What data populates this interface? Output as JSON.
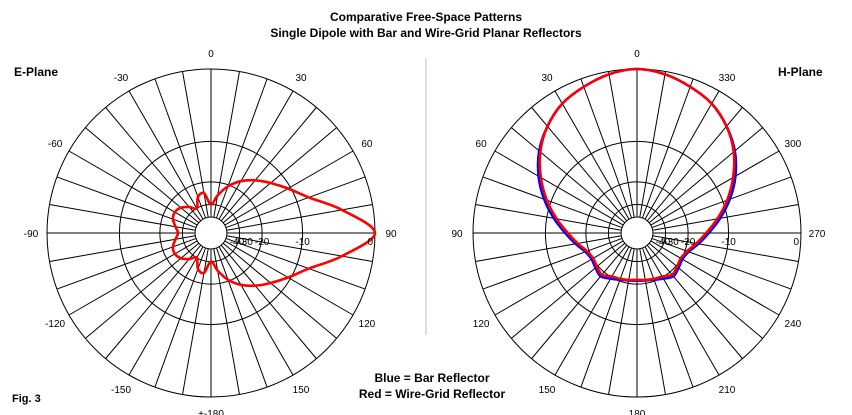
{
  "title_line1": "Comparative Free-Space Patterns",
  "title_line2": "Single Dipole with Bar and Wire-Grid Planar Reflectors",
  "fig_label": "Fig. 3",
  "legend_blue": "Blue = Bar Reflector",
  "legend_red": "Red = Wire-Grid Reflector",
  "colors": {
    "bar": "#0000ff",
    "wire_grid": "#ff0000",
    "grid": "#000000",
    "divider": "#c0c0c0"
  },
  "chart_data": [
    {
      "type": "polar",
      "plane_label": "E-Plane",
      "angle_labels": [
        {
          "angle": 0,
          "text": "0"
        },
        {
          "angle": 30,
          "text": "30"
        },
        {
          "angle": 60,
          "text": "60"
        },
        {
          "angle": 90,
          "text": "90"
        },
        {
          "angle": 120,
          "text": "120"
        },
        {
          "angle": 150,
          "text": "150"
        },
        {
          "angle": 180,
          "text": "+-180"
        },
        {
          "angle": -150,
          "text": "-150"
        },
        {
          "angle": -120,
          "text": "-120"
        },
        {
          "angle": -90,
          "text": "-90"
        },
        {
          "angle": -60,
          "text": "-60"
        },
        {
          "angle": -30,
          "text": "-30"
        }
      ],
      "db_labels": [
        "0",
        "-10",
        "-20",
        "-30",
        "-40"
      ],
      "r_labels_side": "right",
      "series": [
        {
          "color": "#ff0000",
          "angles": [
            0,
            10,
            20,
            30,
            40,
            50,
            60,
            70,
            80,
            90,
            100,
            110,
            120,
            130,
            140,
            150,
            160,
            170,
            180,
            190,
            200,
            210,
            220,
            230,
            240,
            250,
            260,
            270,
            280,
            290,
            300,
            310,
            320,
            330,
            340,
            350,
            360
          ],
          "gain_db": [
            -30,
            -25,
            -20.5,
            -17.3,
            -14.9,
            -12.8,
            -10.5,
            -7.8,
            -3.6,
            0,
            -3.6,
            -7.8,
            -10.5,
            -12.8,
            -14.9,
            -17.3,
            -20.5,
            -25,
            -30,
            -24,
            -25,
            -30,
            -27,
            -24.5,
            -23.5,
            -24,
            -26,
            -27.5,
            -26,
            -24,
            -23.5,
            -24.5,
            -27,
            -30,
            -25,
            -24,
            -30
          ]
        }
      ]
    },
    {
      "type": "polar",
      "plane_label": "H-Plane",
      "angle_labels": [
        {
          "angle": 0,
          "text": "0"
        },
        {
          "angle": 330,
          "text": "330"
        },
        {
          "angle": 300,
          "text": "300"
        },
        {
          "angle": 270,
          "text": "270"
        },
        {
          "angle": 240,
          "text": "240"
        },
        {
          "angle": 210,
          "text": "210"
        },
        {
          "angle": 180,
          "text": "180"
        },
        {
          "angle": 150,
          "text": "150"
        },
        {
          "angle": 120,
          "text": "120"
        },
        {
          "angle": 90,
          "text": "90"
        },
        {
          "angle": 60,
          "text": "60"
        },
        {
          "angle": 30,
          "text": "30"
        }
      ],
      "db_labels": [
        "0",
        "-10",
        "-20",
        "-30",
        "-40"
      ],
      "r_labels_side": "right",
      "series": [
        {
          "color": "#0000ff",
          "angles": [
            0,
            10,
            20,
            30,
            40,
            50,
            60,
            70,
            80,
            90,
            100,
            110,
            120,
            130,
            140,
            150,
            160,
            170,
            180,
            190,
            200,
            210,
            220,
            230,
            240,
            250,
            260,
            270,
            280,
            290,
            300,
            310,
            320,
            330,
            340,
            350,
            360
          ],
          "gain_db": [
            0,
            -0.3,
            -0.9,
            -1.6,
            -2.8,
            -4.3,
            -6.3,
            -8.7,
            -11.4,
            -14.2,
            -16.6,
            -18.8,
            -19.6,
            -19.0,
            -18.3,
            -19.5,
            -20.5,
            -21,
            -21.2,
            -21,
            -20.5,
            -19.5,
            -18.3,
            -19.0,
            -19.6,
            -18.8,
            -16.6,
            -14.2,
            -11.4,
            -8.7,
            -6.3,
            -4.3,
            -2.8,
            -1.6,
            -0.9,
            -0.3,
            0
          ]
        },
        {
          "color": "#ff0000",
          "angles": [
            0,
            10,
            20,
            30,
            40,
            50,
            60,
            70,
            80,
            90,
            100,
            110,
            120,
            130,
            140,
            150,
            160,
            170,
            180,
            190,
            200,
            210,
            220,
            230,
            240,
            250,
            260,
            270,
            280,
            290,
            300,
            310,
            320,
            330,
            340,
            350,
            360
          ],
          "gain_db": [
            0,
            -0.3,
            -0.9,
            -1.6,
            -2.8,
            -4.5,
            -6.7,
            -9.2,
            -12,
            -14.8,
            -17.2,
            -19.3,
            -20.2,
            -19.6,
            -18.9,
            -20.3,
            -20.8,
            -21.2,
            -21.5,
            -21.2,
            -20.8,
            -20.3,
            -18.9,
            -19.6,
            -20.2,
            -19.3,
            -17.2,
            -14.8,
            -12,
            -9.2,
            -6.7,
            -4.5,
            -2.8,
            -1.6,
            -0.9,
            -0.3,
            0
          ]
        }
      ]
    }
  ]
}
